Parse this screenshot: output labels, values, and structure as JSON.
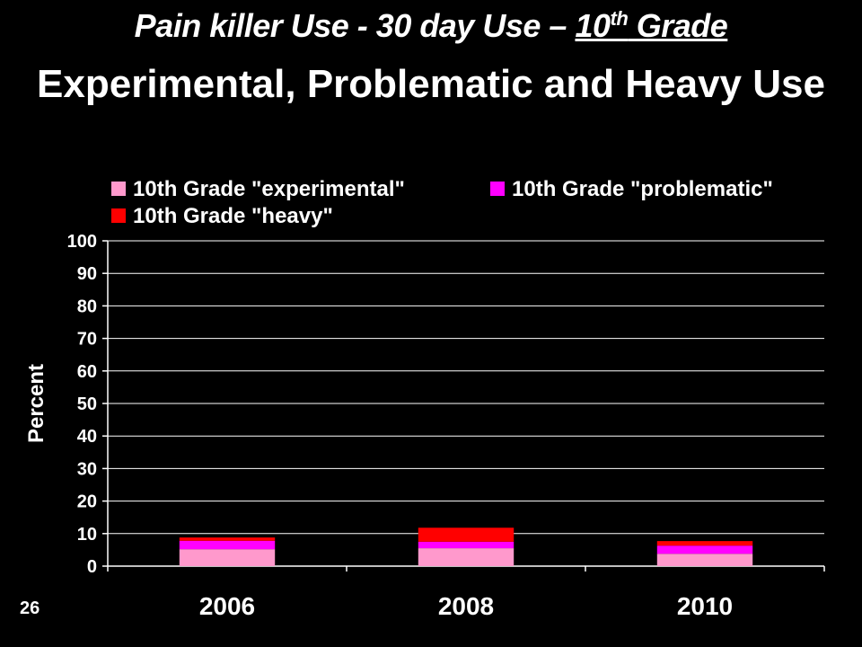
{
  "slide": {
    "title_part1": "Pain killer Use - 30 day Use – ",
    "title_grade_num": "10",
    "title_grade_sup": "th",
    "title_grade_word": " Grade",
    "title_line2": "Experimental, Problematic and Heavy Use",
    "slide_number": "26"
  },
  "colors": {
    "background": "#000000",
    "experimental": "#ff99cc",
    "problematic": "#ff00ff",
    "heavy": "#ff0000",
    "text": "#ffffff"
  },
  "chart_data": {
    "type": "bar",
    "stacked": true,
    "categories": [
      "2006",
      "2008",
      "2010"
    ],
    "series": [
      {
        "name": "10th Grade \"experimental\"",
        "values": [
          5.2,
          5.5,
          3.8
        ],
        "color": "#ff99cc"
      },
      {
        "name": "10th Grade \"problematic\"",
        "values": [
          2.6,
          2.0,
          2.5
        ],
        "color": "#ff00ff"
      },
      {
        "name": "10th Grade \"heavy\"",
        "values": [
          1.0,
          4.3,
          1.4
        ],
        "color": "#ff0000"
      }
    ],
    "ylabel": "Percent",
    "xlabel": "",
    "ylim": [
      0,
      100
    ],
    "yticks": [
      0,
      10,
      20,
      30,
      40,
      50,
      60,
      70,
      80,
      90,
      100
    ],
    "grid": true,
    "legend": "top"
  }
}
